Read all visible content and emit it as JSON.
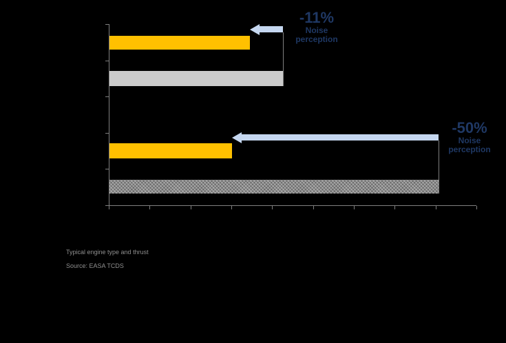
{
  "chart_data": {
    "type": "bar",
    "orientation": "horizontal",
    "title": "",
    "axis": {
      "x_tick_count": 10,
      "y_tick_count": 6,
      "tick_labels_visible": false,
      "units": "bar lengths given as % of visible x-axis span (axis is unlabeled in the image)"
    },
    "legend_visible": false,
    "grid": false,
    "colors": {
      "new_generation_bar": "#FFC000",
      "previous_generation_bar_solid": "#CBCBCB",
      "previous_generation_bar_pattern": "#8A8A8A",
      "reduction_arrow": "#C5D7F0",
      "annotation_text": "#1F3864",
      "axis": "#808080",
      "caption_text": "#8F8F8F",
      "background": "#000000"
    },
    "groups": [
      {
        "name": "comparison-1",
        "bars": [
          {
            "series": "yellow-bar",
            "length_pct": 38.2
          },
          {
            "series": "grey-bar",
            "length_pct": 47.2
          }
        ],
        "annotation": {
          "value": "-11%",
          "label_lines": [
            "Noise",
            "perception"
          ]
        }
      },
      {
        "name": "comparison-2",
        "bars": [
          {
            "series": "yellow-bar",
            "length_pct": 33.3
          },
          {
            "series": "grey-bar",
            "length_pct": 89.5
          }
        ],
        "annotation": {
          "value": "-50%",
          "label_lines": [
            "Noise",
            "perception"
          ]
        }
      }
    ],
    "footnotes": [
      "Typical engine type and thrust",
      "Source: EASA TCDS"
    ]
  }
}
